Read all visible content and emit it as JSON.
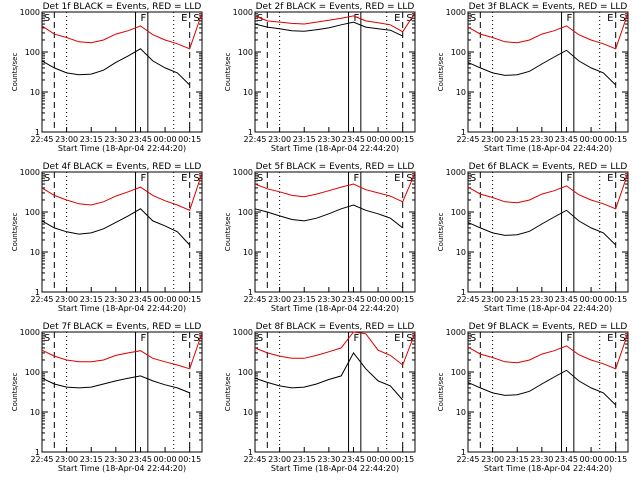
{
  "chart_data": [
    {
      "type": "line",
      "title": "Det 1f BLACK = Events, RED = LLD",
      "xlabel": "Start Time (18-Apr-04 22:44:20)",
      "ylabel": "Counts/sec",
      "ylog": true,
      "ylim": [
        1,
        1000
      ],
      "xticks": [
        "22:45",
        "23:00",
        "23:15",
        "23:30",
        "23:45",
        "00:00",
        "00:15"
      ],
      "yticks": [
        "1",
        "10",
        "100",
        "1000"
      ],
      "markers": [
        "S",
        "F",
        "E",
        "S"
      ],
      "series": [
        {
          "name": "Events",
          "color": "#000000",
          "x": [
            0,
            1,
            2,
            3,
            4,
            5,
            6,
            7,
            8,
            9,
            10,
            11,
            12,
            13
          ],
          "y": [
            60,
            40,
            30,
            27,
            28,
            35,
            55,
            80,
            120,
            60,
            40,
            30,
            15,
            null
          ]
        },
        {
          "name": "LLD",
          "color": "#dd0000",
          "x": [
            0,
            1,
            2,
            3,
            4,
            5,
            6,
            7,
            8,
            9,
            10,
            11,
            12,
            13
          ],
          "y": [
            450,
            280,
            230,
            180,
            170,
            200,
            280,
            340,
            450,
            270,
            200,
            160,
            120,
            950
          ]
        }
      ]
    },
    {
      "type": "line",
      "title": "Det 2f BLACK = Events, RED = LLD",
      "xlabel": "Start Time (18-Apr-04 22:44:20)",
      "ylabel": "Counts/sec",
      "ylog": true,
      "ylim": [
        1,
        1000
      ],
      "xticks": [
        "22:45",
        "23:00",
        "23:15",
        "23:30",
        "23:45",
        "00:00",
        "00:15"
      ],
      "yticks": [
        "1",
        "10",
        "100",
        "1000"
      ],
      "markers": [
        "S",
        "F",
        "E",
        "S"
      ],
      "series": [
        {
          "name": "Events",
          "color": "#000000",
          "x": [
            0,
            1,
            2,
            3,
            4,
            5,
            6,
            7,
            8,
            9,
            10,
            11,
            12,
            13
          ],
          "y": [
            500,
            420,
            380,
            340,
            330,
            360,
            400,
            480,
            560,
            420,
            380,
            350,
            250,
            null
          ]
        },
        {
          "name": "LLD",
          "color": "#dd0000",
          "x": [
            0,
            1,
            2,
            3,
            4,
            5,
            6,
            7,
            8,
            9,
            10,
            11,
            12,
            13
          ],
          "y": [
            800,
            600,
            560,
            520,
            500,
            560,
            620,
            700,
            800,
            600,
            540,
            480,
            320,
            950
          ]
        }
      ]
    },
    {
      "type": "line",
      "title": "Det 3f BLACK = Events, RED = LLD",
      "xlabel": "Start Time (18-Apr-04 22:44:20)",
      "ylabel": "Counts/sec",
      "ylog": true,
      "ylim": [
        1,
        1000
      ],
      "xticks": [
        "22:45",
        "23:00",
        "23:15",
        "23:30",
        "23:45",
        "00:00",
        "00:15"
      ],
      "yticks": [
        "1",
        "10",
        "100",
        "1000"
      ],
      "markers": [
        "S",
        "F",
        "E",
        "S"
      ],
      "series": [
        {
          "name": "Events",
          "color": "#000000",
          "x": [
            0,
            1,
            2,
            3,
            4,
            5,
            6,
            7,
            8,
            9,
            10,
            11,
            12,
            13
          ],
          "y": [
            55,
            40,
            30,
            26,
            27,
            33,
            50,
            75,
            110,
            60,
            40,
            30,
            15,
            null
          ]
        },
        {
          "name": "LLD",
          "color": "#dd0000",
          "x": [
            0,
            1,
            2,
            3,
            4,
            5,
            6,
            7,
            8,
            9,
            10,
            11,
            12,
            13
          ],
          "y": [
            420,
            280,
            230,
            180,
            170,
            200,
            280,
            340,
            450,
            270,
            200,
            160,
            120,
            950
          ]
        }
      ]
    },
    {
      "type": "line",
      "title": "Det 4f BLACK = Events, RED = LLD",
      "xlabel": "Start Time (18-Apr-04 22:44:20)",
      "ylabel": "Counts/sec",
      "ylog": true,
      "ylim": [
        1,
        1000
      ],
      "xticks": [
        "22:45",
        "23:00",
        "23:15",
        "23:30",
        "23:45",
        "00:00",
        "00:15"
      ],
      "yticks": [
        "1",
        "10",
        "100",
        "1000"
      ],
      "markers": [
        "S",
        "F",
        "E",
        "S"
      ],
      "series": [
        {
          "name": "Events",
          "color": "#000000",
          "x": [
            0,
            1,
            2,
            3,
            4,
            5,
            6,
            7,
            8,
            9,
            10,
            11,
            12,
            13
          ],
          "y": [
            60,
            40,
            32,
            28,
            30,
            38,
            55,
            80,
            120,
            60,
            45,
            32,
            15,
            null
          ]
        },
        {
          "name": "LLD",
          "color": "#dd0000",
          "x": [
            0,
            1,
            2,
            3,
            4,
            5,
            6,
            7,
            8,
            9,
            10,
            11,
            12,
            13
          ],
          "y": [
            400,
            260,
            200,
            160,
            150,
            180,
            250,
            320,
            420,
            260,
            190,
            150,
            110,
            950
          ]
        }
      ]
    },
    {
      "type": "line",
      "title": "Det 5f BLACK = Events, RED = LLD",
      "xlabel": "Start Time (18-Apr-04 22:44:20)",
      "ylabel": "Counts/sec",
      "ylog": true,
      "ylim": [
        1,
        1000
      ],
      "xticks": [
        "22:45",
        "23:00",
        "23:15",
        "23:30",
        "23:45",
        "00:00",
        "00:15"
      ],
      "yticks": [
        "1",
        "10",
        "100",
        "1000"
      ],
      "markers": [
        "S",
        "F",
        "E",
        "S"
      ],
      "series": [
        {
          "name": "Events",
          "color": "#000000",
          "x": [
            0,
            1,
            2,
            3,
            4,
            5,
            6,
            7,
            8,
            9,
            10,
            11,
            12,
            13
          ],
          "y": [
            120,
            100,
            80,
            65,
            60,
            70,
            90,
            120,
            150,
            110,
            90,
            70,
            40,
            null
          ]
        },
        {
          "name": "LLD",
          "color": "#dd0000",
          "x": [
            0,
            1,
            2,
            3,
            4,
            5,
            6,
            7,
            8,
            9,
            10,
            11,
            12,
            13
          ],
          "y": [
            500,
            380,
            320,
            260,
            240,
            280,
            340,
            420,
            500,
            360,
            300,
            250,
            180,
            950
          ]
        }
      ]
    },
    {
      "type": "line",
      "title": "Det 6f BLACK = Events, RED = LLD",
      "xlabel": "Start Time (18-Apr-04 22:44:20)",
      "ylabel": "Counts/sec",
      "ylog": true,
      "ylim": [
        1,
        1000
      ],
      "xticks": [
        "22:45",
        "23:00",
        "23:15",
        "23:30",
        "23:45",
        "00:00",
        "00:15"
      ],
      "yticks": [
        "1",
        "10",
        "100",
        "1000"
      ],
      "markers": [
        "S",
        "F",
        "E",
        "S"
      ],
      "series": [
        {
          "name": "Events",
          "color": "#000000",
          "x": [
            0,
            1,
            2,
            3,
            4,
            5,
            6,
            7,
            8,
            9,
            10,
            11,
            12,
            13
          ],
          "y": [
            55,
            40,
            30,
            26,
            27,
            33,
            50,
            75,
            110,
            60,
            40,
            30,
            15,
            null
          ]
        },
        {
          "name": "LLD",
          "color": "#dd0000",
          "x": [
            0,
            1,
            2,
            3,
            4,
            5,
            6,
            7,
            8,
            9,
            10,
            11,
            12,
            13
          ],
          "y": [
            420,
            280,
            230,
            180,
            170,
            200,
            280,
            340,
            450,
            270,
            200,
            160,
            120,
            950
          ]
        }
      ]
    },
    {
      "type": "line",
      "title": "Det 7f BLACK = Events, RED = LLD",
      "xlabel": "Start Time (18-Apr-04 22:44:20)",
      "ylabel": "Counts/sec",
      "ylog": true,
      "ylim": [
        1,
        1000
      ],
      "xticks": [
        "22:45",
        "23:00",
        "23:15",
        "23:30",
        "23:45",
        "00:00",
        "00:15"
      ],
      "yticks": [
        "1",
        "10",
        "100",
        "1000"
      ],
      "markers": [
        "S",
        "F",
        "E",
        "S"
      ],
      "series": [
        {
          "name": "Events",
          "color": "#000000",
          "x": [
            0,
            1,
            2,
            3,
            4,
            5,
            6,
            7,
            8,
            9,
            10,
            11,
            12,
            13
          ],
          "y": [
            70,
            50,
            42,
            40,
            42,
            50,
            60,
            70,
            80,
            60,
            48,
            40,
            30,
            null
          ]
        },
        {
          "name": "LLD",
          "color": "#dd0000",
          "x": [
            0,
            1,
            2,
            3,
            4,
            5,
            6,
            7,
            8,
            9,
            10,
            11,
            12,
            13
          ],
          "y": [
            350,
            250,
            200,
            180,
            180,
            200,
            260,
            300,
            340,
            220,
            180,
            150,
            120,
            950
          ]
        }
      ]
    },
    {
      "type": "line",
      "title": "Det 8f BLACK = Events, RED = LLD",
      "xlabel": "Start Time (18-Apr-04 22:44:20)",
      "ylabel": "Counts/sec",
      "ylog": true,
      "ylim": [
        1,
        1000
      ],
      "xticks": [
        "22:45",
        "23:00",
        "23:15",
        "23:30",
        "23:45",
        "00:00",
        "00:15"
      ],
      "yticks": [
        "1",
        "10",
        "100",
        "1000"
      ],
      "markers": [
        "S",
        "F",
        "E",
        "S"
      ],
      "series": [
        {
          "name": "Events",
          "color": "#000000",
          "x": [
            0,
            1,
            2,
            3,
            4,
            5,
            6,
            7,
            8,
            9,
            10,
            11,
            12,
            13
          ],
          "y": [
            70,
            55,
            45,
            40,
            42,
            50,
            65,
            80,
            300,
            120,
            60,
            45,
            20,
            null
          ]
        },
        {
          "name": "LLD",
          "color": "#dd0000",
          "x": [
            0,
            1,
            2,
            3,
            4,
            5,
            6,
            7,
            8,
            9,
            10,
            11,
            12,
            13
          ],
          "y": [
            400,
            300,
            250,
            220,
            220,
            260,
            320,
            400,
            1000,
            900,
            350,
            260,
            150,
            950
          ]
        }
      ]
    },
    {
      "type": "line",
      "title": "Det 9f BLACK = Events, RED = LLD",
      "xlabel": "Start Time (18-Apr-04 22:44:20)",
      "ylabel": "Counts/sec",
      "ylog": true,
      "ylim": [
        1,
        1000
      ],
      "xticks": [
        "22:45",
        "23:00",
        "23:15",
        "23:30",
        "23:45",
        "00:00",
        "00:15"
      ],
      "yticks": [
        "1",
        "10",
        "100",
        "1000"
      ],
      "markers": [
        "S",
        "F",
        "E",
        "S"
      ],
      "series": [
        {
          "name": "Events",
          "color": "#000000",
          "x": [
            0,
            1,
            2,
            3,
            4,
            5,
            6,
            7,
            8,
            9,
            10,
            11,
            12,
            13
          ],
          "y": [
            55,
            40,
            30,
            26,
            27,
            33,
            50,
            75,
            110,
            60,
            40,
            30,
            15,
            null
          ]
        },
        {
          "name": "LLD",
          "color": "#dd0000",
          "x": [
            0,
            1,
            2,
            3,
            4,
            5,
            6,
            7,
            8,
            9,
            10,
            11,
            12,
            13
          ],
          "y": [
            420,
            280,
            230,
            180,
            170,
            200,
            280,
            340,
            450,
            270,
            200,
            160,
            120,
            950
          ]
        }
      ]
    }
  ]
}
